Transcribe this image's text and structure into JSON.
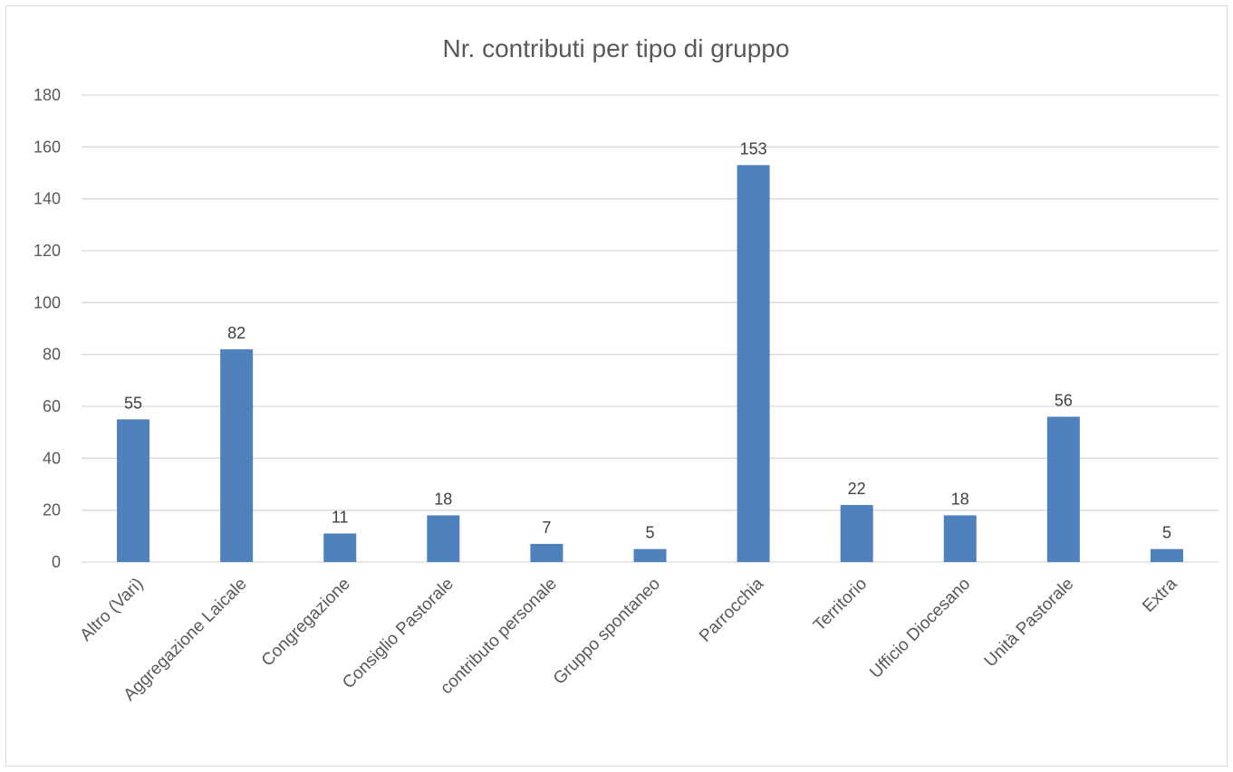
{
  "chart_data": {
    "type": "bar",
    "title": "Nr. contributi per tipo di gruppo",
    "xlabel": "",
    "ylabel": "",
    "categories": [
      "Altro (Vari)",
      "Aggregazione Laicale",
      "Congregazione",
      "Consiglio Pastorale",
      "contributo personale",
      "Gruppo spontaneo",
      "Parrocchia",
      "Territorio",
      "Ufficio Diocesano",
      "Unità Pastorale",
      "Extra"
    ],
    "values": [
      55,
      82,
      11,
      18,
      7,
      5,
      153,
      22,
      18,
      56,
      5
    ],
    "ylim": [
      0,
      180
    ],
    "yticks": [
      0,
      20,
      40,
      60,
      80,
      100,
      120,
      140,
      160,
      180
    ],
    "grid": true,
    "legend": "none",
    "colors": {
      "bar": "#4f81bd",
      "grid": "#d9d9d9",
      "text": "#595959",
      "frame": "#d9d9d9"
    }
  }
}
